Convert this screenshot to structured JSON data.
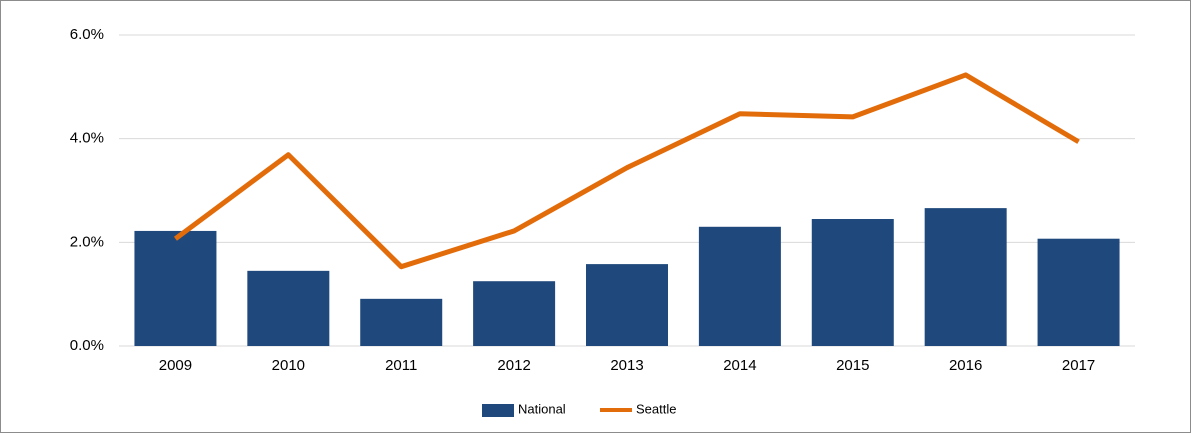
{
  "chart_data": {
    "type": "bar",
    "categories": [
      "2009",
      "2010",
      "2011",
      "2012",
      "2013",
      "2014",
      "2015",
      "2016",
      "2017"
    ],
    "series": [
      {
        "name": "National",
        "type": "bar",
        "color": "#1f497d",
        "values": [
          2.22,
          1.45,
          0.91,
          1.25,
          1.58,
          2.3,
          2.45,
          2.66,
          2.07
        ]
      },
      {
        "name": "Seattle",
        "type": "line",
        "color": "#e36c0a",
        "values": [
          2.07,
          3.69,
          1.53,
          2.22,
          3.44,
          4.48,
          4.42,
          5.23,
          3.94
        ]
      }
    ],
    "ylim": [
      0,
      6
    ],
    "yticks": [
      {
        "value": 0,
        "label": "0.0%"
      },
      {
        "value": 2,
        "label": "2.0%"
      },
      {
        "value": 4,
        "label": "4.0%"
      },
      {
        "value": 6,
        "label": "6.0%"
      }
    ],
    "grid": true,
    "legend": "bottom"
  }
}
